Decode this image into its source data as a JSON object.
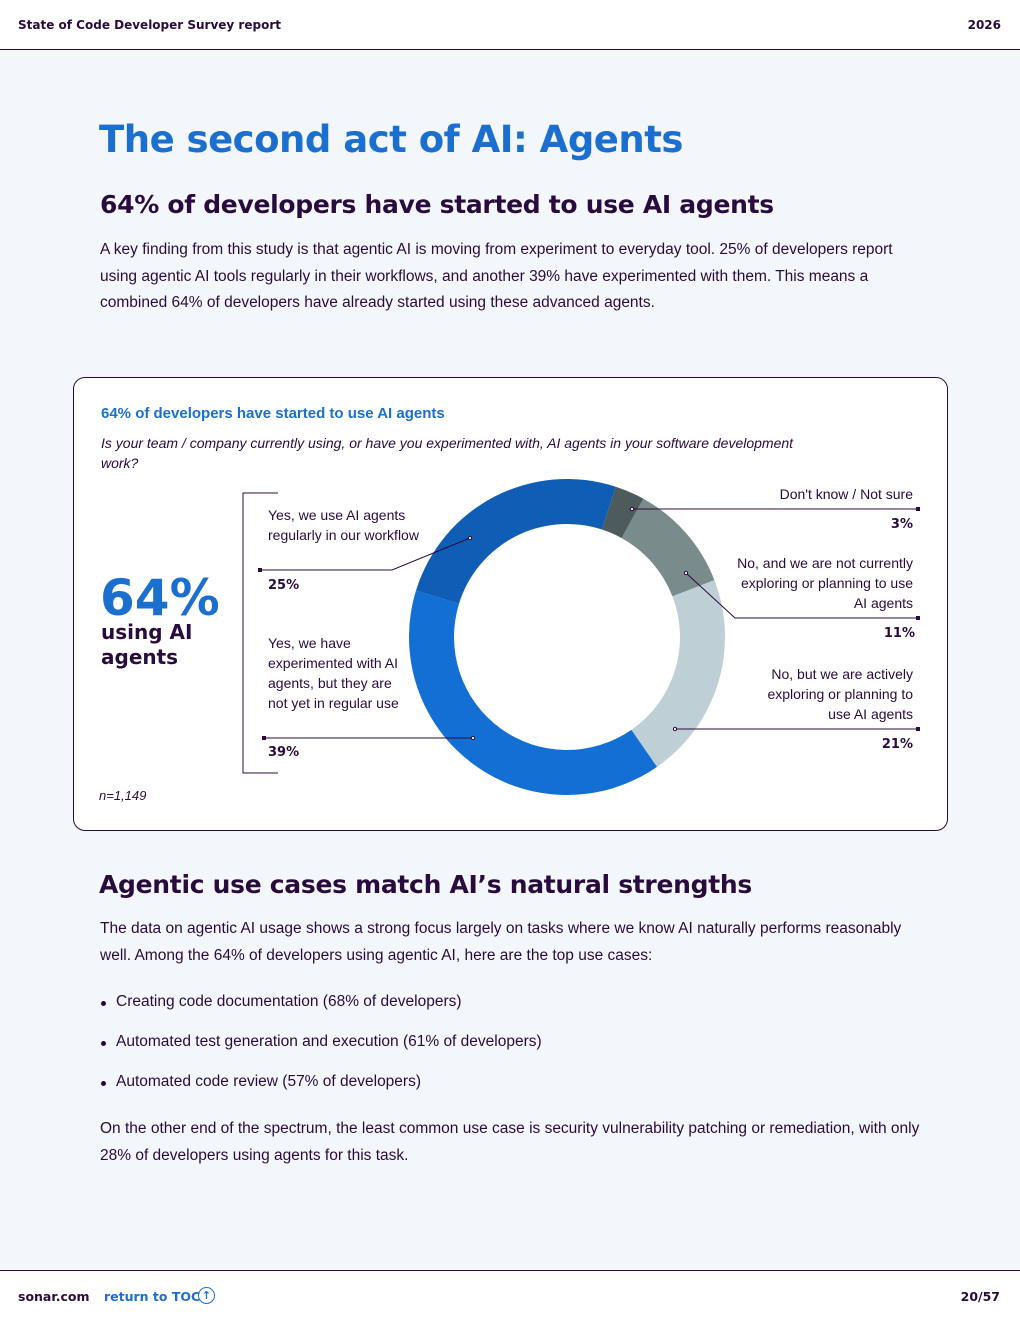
{
  "header": {
    "title": "State of Code Developer Survey report",
    "year": "2026"
  },
  "main": {
    "title": "The second act of AI: Agents",
    "section1": {
      "heading": "64% of developers have started to use AI agents",
      "paragraph": "A key finding from this study is that agentic AI is moving from experiment to everyday tool. 25% of developers report using agentic AI tools regularly in their workflows, and another 39% have experimented with them. This means a combined 64% of developers have already started using these advanced agents."
    },
    "section2": {
      "heading": "Agentic use cases match AI’s natural strengths",
      "paragraph": "The data on agentic AI usage shows a strong focus largely on tasks where we know AI naturally performs reasonably well. Among the 64% of developers using agentic AI, here are the top use cases:",
      "bullets": [
        "Creating code documentation (68% of developers)",
        "Automated test generation and execution (61% of developers)",
        "Automated code review (57% of developers)"
      ],
      "closing": "On the other end of the spectrum, the least common use case is security vulnerability patching or remediation, with only 28% of developers using agents for this task."
    }
  },
  "chart_data": {
    "type": "pie",
    "donut": true,
    "title": "64% of developers have started to use AI agents",
    "subtitle": "Is your team / company currently using, or have you experimented with, AI agents in your software development work?",
    "highlight": {
      "value": "64%",
      "label": "using AI agents"
    },
    "sample": "n=1,149",
    "slices": [
      {
        "label": "Don't know / Not sure",
        "value": 3,
        "display": "3%",
        "color": "#4e5b5c"
      },
      {
        "label": "No, and we are not currently exploring or planning to use AI agents",
        "value": 11,
        "display": "11%",
        "color": "#7a8b8c"
      },
      {
        "label": "No, but we are actively exploring or planning to use AI agents",
        "value": 21,
        "display": "21%",
        "color": "#bfcfd6"
      },
      {
        "label": "Yes, we have experimented with AI agents, but they are not yet in regular use",
        "value": 39,
        "display": "39%",
        "color": "#136fd3"
      },
      {
        "label": "Yes, we use AI agents regularly in our workflow",
        "value": 25,
        "display": "25%",
        "color": "#0f5db5"
      }
    ]
  },
  "footer": {
    "site": "sonar.com",
    "toc_link": "return to TOC",
    "toc_icon": "arrow-up-circle-icon",
    "page": "20/57"
  }
}
